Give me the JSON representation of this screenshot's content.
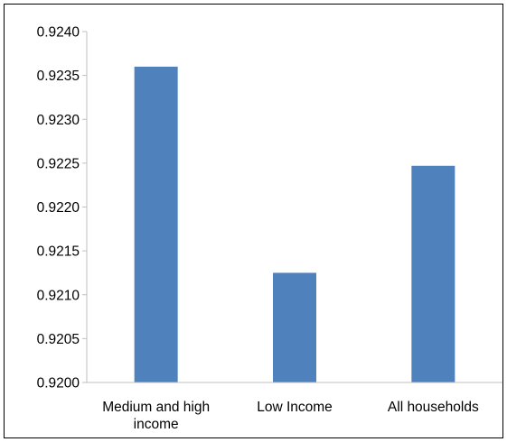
{
  "chart_data": {
    "type": "bar",
    "categories": [
      [
        "Medium and high",
        "income"
      ],
      [
        "Low Income"
      ],
      [
        "All households"
      ]
    ],
    "values": [
      0.9236,
      0.92125,
      0.92247
    ],
    "ylim": [
      0.92,
      0.924
    ],
    "yticks": [
      "0.9200",
      "0.9205",
      "0.9210",
      "0.9215",
      "0.9220",
      "0.9225",
      "0.9230",
      "0.9235",
      "0.9240"
    ],
    "grid": false,
    "legend": "none",
    "colors": {
      "bar": "#4f81bd",
      "axis": "#bfbfbf",
      "text": "#000000"
    }
  }
}
